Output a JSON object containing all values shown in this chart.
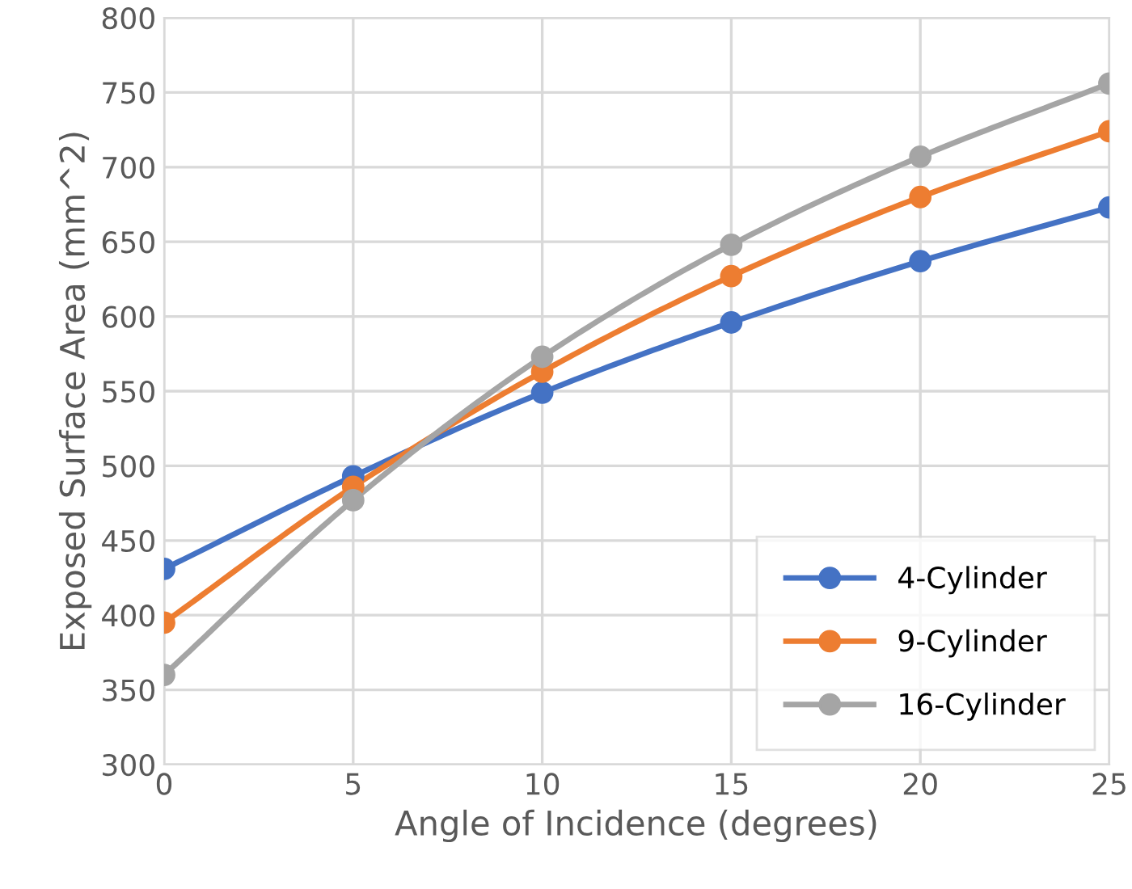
{
  "chart_data": {
    "type": "line",
    "xlabel": "Angle of Incidence (degrees)",
    "ylabel": "Exposed Surface Area (mm^2)",
    "x": [
      0,
      5,
      10,
      15,
      20,
      25
    ],
    "series": [
      {
        "name": "4-Cylinder",
        "color": "#4472c4",
        "values": [
          431,
          493,
          549,
          596,
          637,
          673
        ]
      },
      {
        "name": "9-Cylinder",
        "color": "#ed7d31",
        "values": [
          395,
          486,
          563,
          627,
          680,
          724
        ]
      },
      {
        "name": "16-Cylinder",
        "color": "#a5a5a5",
        "values": [
          360,
          477,
          573,
          648,
          707,
          756
        ]
      }
    ],
    "xlim": [
      0,
      25
    ],
    "xticks": [
      0,
      5,
      10,
      15,
      20,
      25
    ],
    "ylim": [
      300,
      800
    ],
    "yticks": [
      300,
      350,
      400,
      450,
      500,
      550,
      600,
      650,
      700,
      750,
      800
    ],
    "grid": true,
    "legend": "bottom right",
    "marker": "circle",
    "line_style": "solid"
  }
}
